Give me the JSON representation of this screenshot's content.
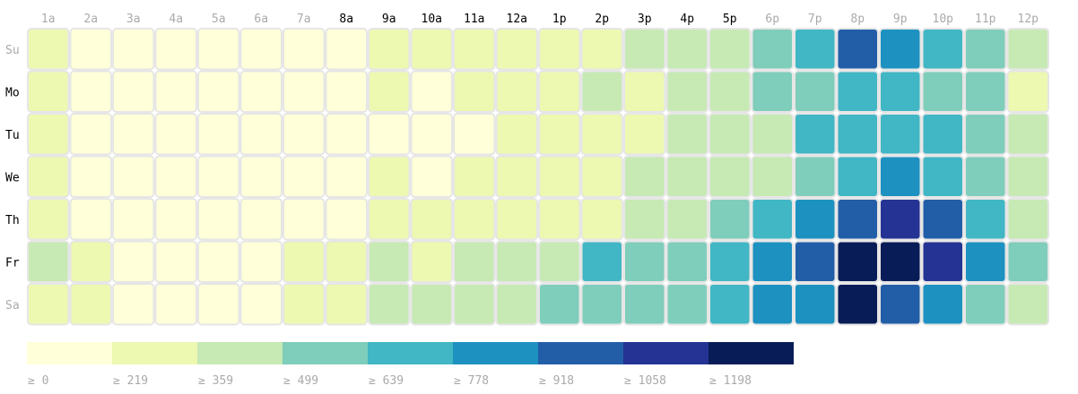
{
  "chart_data": {
    "type": "heatmap",
    "hours": [
      "1a",
      "2a",
      "3a",
      "4a",
      "5a",
      "6a",
      "7a",
      "8a",
      "9a",
      "10a",
      "11a",
      "12a",
      "1p",
      "2p",
      "3p",
      "4p",
      "5p",
      "6p",
      "7p",
      "8p",
      "9p",
      "10p",
      "11p",
      "12p"
    ],
    "days": [
      "Su",
      "Mo",
      "Tu",
      "We",
      "Th",
      "Fr",
      "Sa"
    ],
    "highlighted_hours": [
      "8a",
      "9a",
      "10a",
      "11a",
      "12a",
      "1p",
      "2p",
      "3p",
      "4p",
      "5p"
    ],
    "highlighted_days": [
      "Mo",
      "Tu",
      "We",
      "Th",
      "Fr"
    ],
    "values": [
      [
        250,
        40,
        40,
        40,
        40,
        40,
        40,
        40,
        250,
        250,
        250,
        250,
        250,
        250,
        400,
        400,
        400,
        550,
        700,
        950,
        800,
        700,
        550,
        400
      ],
      [
        250,
        40,
        40,
        40,
        40,
        40,
        40,
        40,
        250,
        40,
        250,
        250,
        250,
        400,
        250,
        400,
        400,
        550,
        550,
        700,
        700,
        550,
        550,
        250
      ],
      [
        250,
        40,
        40,
        40,
        40,
        40,
        40,
        40,
        40,
        40,
        40,
        250,
        250,
        250,
        250,
        400,
        400,
        400,
        700,
        700,
        700,
        700,
        550,
        400
      ],
      [
        250,
        40,
        40,
        40,
        40,
        40,
        40,
        40,
        250,
        40,
        250,
        250,
        250,
        250,
        400,
        400,
        400,
        400,
        550,
        700,
        800,
        700,
        550,
        400
      ],
      [
        250,
        40,
        40,
        40,
        40,
        40,
        40,
        40,
        250,
        250,
        250,
        250,
        250,
        250,
        400,
        400,
        550,
        700,
        800,
        950,
        1100,
        950,
        700,
        400
      ],
      [
        400,
        250,
        40,
        40,
        40,
        40,
        250,
        250,
        400,
        250,
        400,
        400,
        400,
        700,
        550,
        550,
        700,
        800,
        950,
        1250,
        1250,
        1100,
        800,
        550
      ],
      [
        250,
        250,
        40,
        40,
        40,
        40,
        250,
        250,
        400,
        400,
        400,
        400,
        550,
        550,
        550,
        550,
        700,
        800,
        800,
        1250,
        950,
        800,
        550,
        400
      ]
    ],
    "buckets": [
      0,
      219,
      359,
      499,
      639,
      778,
      918,
      1058,
      1198
    ],
    "colors": [
      "#ffffd9",
      "#edf8b1",
      "#c7e9b4",
      "#7fcdbb",
      "#41b6c4",
      "#1d91c0",
      "#225ea8",
      "#253494",
      "#081d58"
    ],
    "legend_labels": [
      "≥ 0",
      "≥ 219",
      "≥ 359",
      "≥ 499",
      "≥ 639",
      "≥ 778",
      "≥ 918",
      "≥ 1058",
      "≥ 1198"
    ],
    "label_color_highlight": "#000000",
    "label_color_dim": "#aaaaaa",
    "cell_border_color": "#e6e6e6"
  }
}
